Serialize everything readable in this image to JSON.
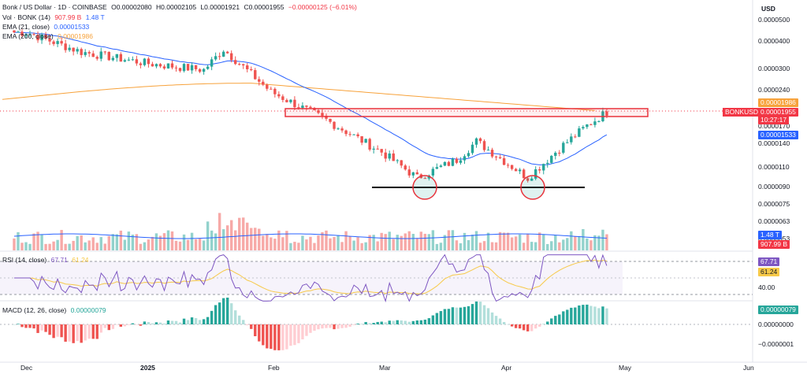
{
  "header": {
    "symbol_line": "Bonk / US Dollar · 1D · COINBASE",
    "ohlc": {
      "o": "O0.00002080",
      "h": "H0.00002105",
      "l": "L0.00001921",
      "c": "C0.00001955",
      "chg": "−0.00000125 (−6.01%)"
    },
    "vol_label": "Vol · BONK (14)",
    "vol_value1": "907.99 B",
    "vol_value2": "1.48 T",
    "ema21_label": "EMA (21, close)",
    "ema21_value": "0.00001533",
    "ema200_label": "EMA (200, close)",
    "ema200_value": "0.00001986",
    "rsi_label": "RSI (14, close)",
    "rsi_value": "67.71",
    "rsi_ma_value": "61.24",
    "macd_label": "MACD (12, 26, close)",
    "macd_value": "0.00000079"
  },
  "price_axis": {
    "currency": "USD",
    "ticks": [
      "0.0000500",
      "0.0000400",
      "0.0000300",
      "0.0000240",
      "0.0000170",
      "0.0000140",
      "0.0000110",
      "0.0000090",
      "0.0000075",
      "0.0000063",
      "0.0000053"
    ]
  },
  "price_tags": {
    "ema200": "0.00001986",
    "symbol": "BONKUSD",
    "last": "0.00001955",
    "countdown": "10:27:17",
    "p17": "0.00001700",
    "ema21": "0.00001533",
    "vol1": "1.48 T",
    "vol2": "907.99 B"
  },
  "rsi_axis": {
    "ticks": [
      "40.00"
    ],
    "value": "67.71",
    "ma": "61.24"
  },
  "macd_axis": {
    "ticks": [
      "0.00000000",
      "−0.0000001"
    ],
    "value": "0.00000079"
  },
  "time_axis": [
    "Dec",
    "2025",
    "Feb",
    "Mar",
    "Apr",
    "May",
    "Jun"
  ],
  "colors": {
    "up": "#26a69a",
    "down": "#ef5350",
    "ema21": "#2962ff",
    "ema200": "#f7a23b",
    "rsi": "#7e57c2",
    "rsima": "#f7c948",
    "resistance": "#e8323b",
    "support": "#000000"
  },
  "chart_data": {
    "type": "candlestick",
    "title": "Bonk / US Dollar · 1D · COINBASE",
    "x_range": [
      "2024-11-28",
      "2025-06-05"
    ],
    "y_range": [
      8.3e-06,
      6e-05
    ],
    "log_scale": true,
    "series": [
      {
        "name": "EMA (21, close)",
        "last": 1.533e-05
      },
      {
        "name": "EMA (200, close)",
        "last": 1.986e-05
      }
    ],
    "approx_closes": [
      {
        "date": "2024-12-01",
        "close": 4.4e-05
      },
      {
        "date": "2024-12-15",
        "close": 3.6e-05
      },
      {
        "date": "2025-01-01",
        "close": 3.2e-05
      },
      {
        "date": "2025-01-15",
        "close": 3e-05
      },
      {
        "date": "2025-01-20",
        "close": 3.7e-05
      },
      {
        "date": "2025-02-01",
        "close": 2.4e-05
      },
      {
        "date": "2025-02-15",
        "close": 1.8e-05
      },
      {
        "date": "2025-03-01",
        "close": 1.3e-05
      },
      {
        "date": "2025-03-10",
        "close": 1e-05
      },
      {
        "date": "2025-03-20",
        "close": 1.2e-05
      },
      {
        "date": "2025-03-25",
        "close": 1.45e-05
      },
      {
        "date": "2025-04-07",
        "close": 1e-05
      },
      {
        "date": "2025-04-15",
        "close": 1.35e-05
      },
      {
        "date": "2025-04-22",
        "close": 1.7e-05
      },
      {
        "date": "2025-04-27",
        "close": 1.955e-05
      }
    ],
    "annotations": [
      {
        "kind": "resistance-zone",
        "from": 1.8e-05,
        "to": 2.05e-05
      },
      {
        "kind": "support-line",
        "level": 8.8e-06
      },
      {
        "kind": "circle",
        "date": "2025-03-10",
        "level": 9.2e-06
      },
      {
        "kind": "circle",
        "date": "2025-04-07",
        "level": 9.2e-06
      }
    ],
    "rsi": {
      "last": 67.71,
      "ma": 61.24,
      "bands": [
        70,
        30
      ]
    },
    "macd": {
      "last_hist": 7.9e-07
    }
  }
}
